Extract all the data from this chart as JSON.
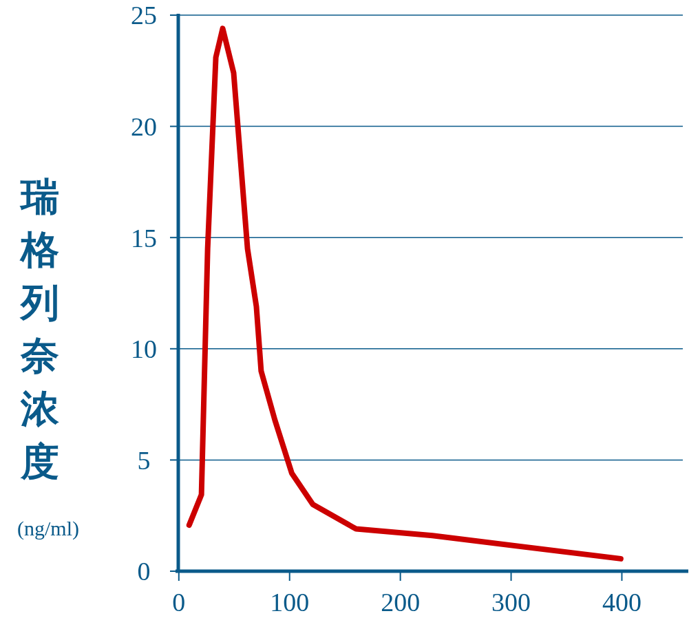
{
  "chart_data": {
    "type": "line",
    "ylabel": "瑞格列奈浓度\n(ng/ml)",
    "xlim": [
      -3,
      460
    ],
    "xticks": [
      0,
      100,
      200,
      300,
      400
    ],
    "ylim": [
      0,
      25
    ],
    "yticks": [
      0,
      5,
      10,
      15,
      20,
      25
    ],
    "grid": "y",
    "line_style": "solid",
    "series": [
      {
        "color": "#cc0000",
        "x": [
          9.3,
          20.4,
          26,
          33.4,
          39.6,
          49.5,
          62,
          70,
          74.3,
          86.7,
          102,
          121,
          160,
          229,
          399
        ],
        "values": [
          2.07,
          3.44,
          14.5,
          23.1,
          24.4,
          22.4,
          14.5,
          11.9,
          9.0,
          6.8,
          4.4,
          3.0,
          1.9,
          1.6,
          0.56
        ]
      }
    ]
  }
}
